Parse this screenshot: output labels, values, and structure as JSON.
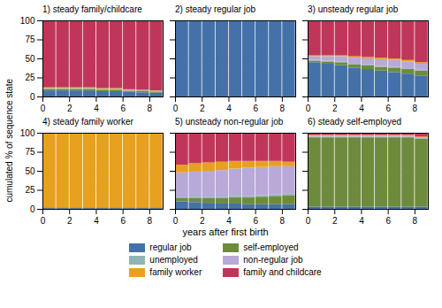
{
  "chart_data": {
    "type": "bar",
    "stacked": true,
    "grid": true,
    "legend": "bottom",
    "xlabel": "years after first birth",
    "ylabel": "cumulated % of sequence state",
    "x": [
      0.5,
      1.5,
      2.5,
      3.5,
      4.5,
      5.5,
      6.5,
      7.5,
      8.5
    ],
    "xlim": [
      0,
      9
    ],
    "xticks": [
      0,
      2,
      4,
      6,
      8
    ],
    "ylim": [
      0,
      100
    ],
    "yticks": [
      0,
      25,
      50,
      75,
      100
    ],
    "panels": [
      {
        "title": "1) steady family/childcare",
        "series": [
          {
            "name": "regular job",
            "color": "#4472A8",
            "values": [
              8.0,
              8.0,
              8.0,
              8.0,
              7.0,
              7.0,
              6.0,
              5.5,
              5.0
            ]
          },
          {
            "name": "self-employed",
            "color": "#6E8B3D",
            "values": [
              2.0,
              2.0,
              2.0,
              2.0,
              2.0,
              2.0,
              1.5,
              1.5,
              1.5
            ]
          },
          {
            "name": "unemployed",
            "color": "#8FB4B4",
            "values": [
              1.0,
              1.0,
              1.0,
              1.0,
              1.0,
              1.0,
              1.0,
              1.0,
              1.0
            ]
          },
          {
            "name": "non-regular job",
            "color": "#B8A9D9",
            "values": [
              0.0,
              0.0,
              0.0,
              0.0,
              0.0,
              0.0,
              0.0,
              0.0,
              0.0
            ]
          },
          {
            "name": "family worker",
            "color": "#E8A020",
            "values": [
              1.0,
              1.0,
              1.0,
              1.0,
              1.0,
              1.0,
              1.0,
              1.0,
              0.5
            ]
          },
          {
            "name": "family and childcare",
            "color": "#C0365A",
            "values": [
              88.0,
              88.0,
              88.0,
              88.0,
              89.0,
              89.0,
              90.5,
              91.0,
              92.0
            ]
          }
        ]
      },
      {
        "title": "2) steady regular job",
        "tick_labels": "x",
        "series": [
          {
            "name": "regular job",
            "color": "#4472A8",
            "values": [
              99.5,
              99.5,
              99.5,
              99.5,
              99.5,
              99.5,
              99.5,
              99.5,
              99.5
            ]
          },
          {
            "name": "self-employed",
            "color": "#6E8B3D",
            "values": [
              0.0,
              0.0,
              0.0,
              0.0,
              0.0,
              0.0,
              0.0,
              0.0,
              0.0
            ]
          },
          {
            "name": "unemployed",
            "color": "#8FB4B4",
            "values": [
              0.0,
              0.0,
              0.0,
              0.0,
              0.0,
              0.0,
              0.0,
              0.0,
              0.0
            ]
          },
          {
            "name": "non-regular job",
            "color": "#B8A9D9",
            "values": [
              0.0,
              0.0,
              0.0,
              0.0,
              0.0,
              0.0,
              0.0,
              0.0,
              0.0
            ]
          },
          {
            "name": "family worker",
            "color": "#E8A020",
            "values": [
              0.0,
              0.0,
              0.0,
              0.0,
              0.0,
              0.0,
              0.0,
              0.0,
              0.0
            ]
          },
          {
            "name": "family and childcare",
            "color": "#C0365A",
            "values": [
              0.5,
              0.5,
              0.5,
              0.5,
              0.5,
              0.5,
              0.5,
              0.5,
              0.5
            ]
          }
        ]
      },
      {
        "title": "3) unsteady regular job",
        "tick_labels": "x",
        "series": [
          {
            "name": "regular job",
            "color": "#4472A8",
            "values": [
              45,
              43,
              41,
              38,
              36,
              34,
              32,
              30,
              27
            ]
          },
          {
            "name": "self-employed",
            "color": "#6E8B3D",
            "values": [
              2,
              3,
              4,
              4,
              5,
              5,
              6,
              6,
              7
            ]
          },
          {
            "name": "unemployed",
            "color": "#8FB4B4",
            "values": [
              1,
              1,
              1,
              1,
              1,
              1,
              1,
              1,
              1
            ]
          },
          {
            "name": "non-regular job",
            "color": "#B8A9D9",
            "values": [
              5,
              6,
              7,
              8,
              8,
              9,
              9,
              9,
              8
            ]
          },
          {
            "name": "family worker",
            "color": "#E8A020",
            "values": [
              1,
              1,
              1,
              2,
              2,
              2,
              2,
              2,
              2
            ]
          },
          {
            "name": "family and childcare",
            "color": "#C0365A",
            "values": [
              46,
              46,
              46,
              47,
              48,
              49,
              50,
              52,
              55
            ]
          }
        ]
      },
      {
        "title": "4) steady family worker",
        "series": [
          {
            "name": "regular job",
            "color": "#4472A8",
            "values": [
              1.0,
              1.0,
              1.0,
              1.0,
              1.0,
              1.0,
              1.0,
              1.0,
              1.0
            ]
          },
          {
            "name": "self-employed",
            "color": "#6E8B3D",
            "values": [
              1.0,
              1.0,
              1.0,
              1.0,
              1.0,
              1.0,
              1.0,
              1.0,
              1.0
            ]
          },
          {
            "name": "unemployed",
            "color": "#8FB4B4",
            "values": [
              0.0,
              0.0,
              0.0,
              0.0,
              0.0,
              0.0,
              0.0,
              0.0,
              0.0
            ]
          },
          {
            "name": "non-regular job",
            "color": "#B8A9D9",
            "values": [
              0.0,
              0.0,
              0.0,
              0.0,
              0.0,
              0.0,
              0.0,
              0.0,
              0.0
            ]
          },
          {
            "name": "family worker",
            "color": "#E8A020",
            "values": [
              97.5,
              97.5,
              97.5,
              97.5,
              97.5,
              97.5,
              97.5,
              97.5,
              97.5
            ]
          },
          {
            "name": "family and childcare",
            "color": "#C0365A",
            "values": [
              0.5,
              0.5,
              0.5,
              0.5,
              0.5,
              0.5,
              0.5,
              0.5,
              0.5
            ]
          }
        ]
      },
      {
        "title": "5) unsteady non-regular job",
        "tick_labels": "x",
        "series": [
          {
            "name": "regular job",
            "color": "#4472A8",
            "values": [
              10,
              9,
              8,
              7,
              7,
              6,
              6,
              6,
              6
            ]
          },
          {
            "name": "self-employed",
            "color": "#6E8B3D",
            "values": [
              4,
              5,
              6,
              7,
              8,
              9,
              10,
              11,
              12
            ]
          },
          {
            "name": "unemployed",
            "color": "#8FB4B4",
            "values": [
              2,
              2,
              2,
              2,
              2,
              2,
              2,
              2,
              2
            ]
          },
          {
            "name": "non-regular job",
            "color": "#B8A9D9",
            "values": [
              32,
              33,
              34,
              35,
              36,
              37,
              37,
              37,
              36
            ]
          },
          {
            "name": "family worker",
            "color": "#E8A020",
            "values": [
              10,
              11,
              11,
              11,
              10,
              9,
              8,
              7,
              6
            ]
          },
          {
            "name": "family and childcare",
            "color": "#C0365A",
            "values": [
              42,
              40,
              39,
              38,
              37,
              37,
              37,
              37,
              38
            ]
          }
        ]
      },
      {
        "title": "6) steady self-employed",
        "tick_labels": "x",
        "series": [
          {
            "name": "regular job",
            "color": "#4472A8",
            "values": [
              3,
              3,
              3,
              3,
              3,
              3,
              3,
              3,
              3
            ]
          },
          {
            "name": "self-employed",
            "color": "#6E8B3D",
            "values": [
              91,
              91,
              91,
              91,
              91,
              91,
              91,
              91,
              89
            ]
          },
          {
            "name": "unemployed",
            "color": "#8FB4B4",
            "values": [
              1,
              1,
              1,
              1,
              1,
              1,
              1,
              1,
              1
            ]
          },
          {
            "name": "non-regular job",
            "color": "#B8A9D9",
            "values": [
              1,
              1,
              1,
              1,
              1,
              1,
              1,
              1,
              1
            ]
          },
          {
            "name": "family worker",
            "color": "#E8A020",
            "values": [
              1,
              1,
              1,
              1,
              1,
              1,
              1,
              1,
              1
            ]
          },
          {
            "name": "family and childcare",
            "color": "#C0365A",
            "values": [
              3,
              3,
              3,
              3,
              3,
              3,
              3,
              3,
              5
            ]
          }
        ]
      }
    ]
  }
}
